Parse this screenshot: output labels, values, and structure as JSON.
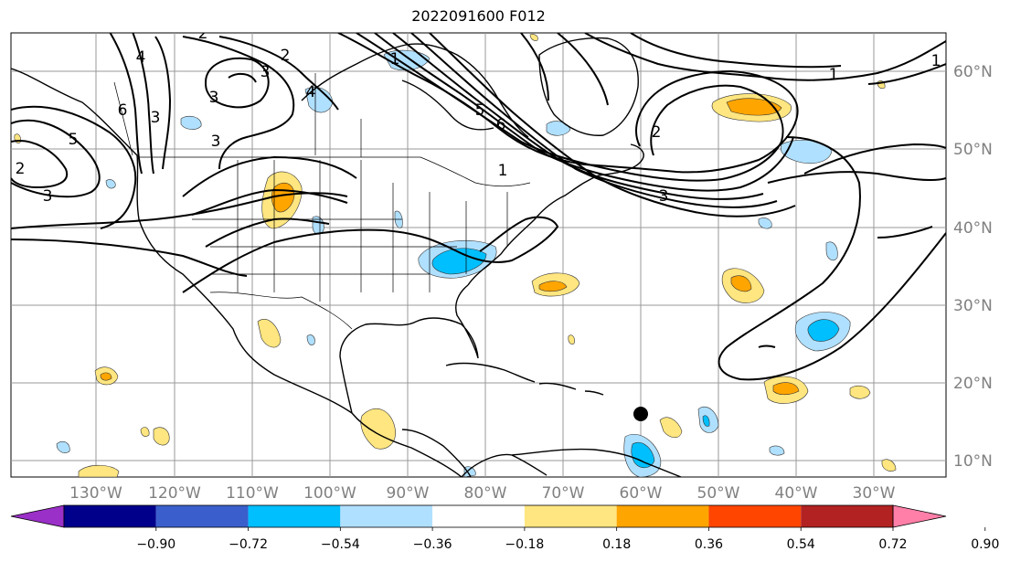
{
  "title": "2022091600 F012",
  "lon_labels": [
    "130°W",
    "120°W",
    "110°W",
    "100°W",
    "90°W",
    "80°W",
    "70°W",
    "60°W",
    "50°W",
    "40°W",
    "30°W"
  ],
  "lat_labels": [
    "60°N",
    "50°N",
    "40°N",
    "30°N",
    "20°N",
    "10°N"
  ],
  "colorbar": {
    "ticks": [
      "−0.90",
      "−0.72",
      "−0.54",
      "−0.36",
      "−0.18",
      "0.18",
      "0.36",
      "0.54",
      "0.72",
      "0.90"
    ],
    "colors": [
      "#9b30c8",
      "#00008b",
      "#3a5fcd",
      "#00bfff",
      "#b0e0ff",
      "#ffffff",
      "#ffe680",
      "#ffa500",
      "#ff4500",
      "#b22222",
      "#ff7fa8"
    ]
  },
  "contour_labels": [
    "1",
    "2",
    "3",
    "4",
    "5",
    "6",
    "1",
    "2",
    "3",
    "3",
    "4",
    "5",
    "6",
    "2",
    "1",
    "3",
    "1",
    "2",
    "3",
    "3"
  ],
  "colors": {
    "grid": "#999999",
    "axis_label": "#808080",
    "contour": "#000000",
    "marker": "#000000"
  },
  "map_features": [
    "coastlines",
    "state-borders",
    "country-borders",
    "lat-lon-grid",
    "contour-lines",
    "shaded-anomalies",
    "storm-marker"
  ]
}
